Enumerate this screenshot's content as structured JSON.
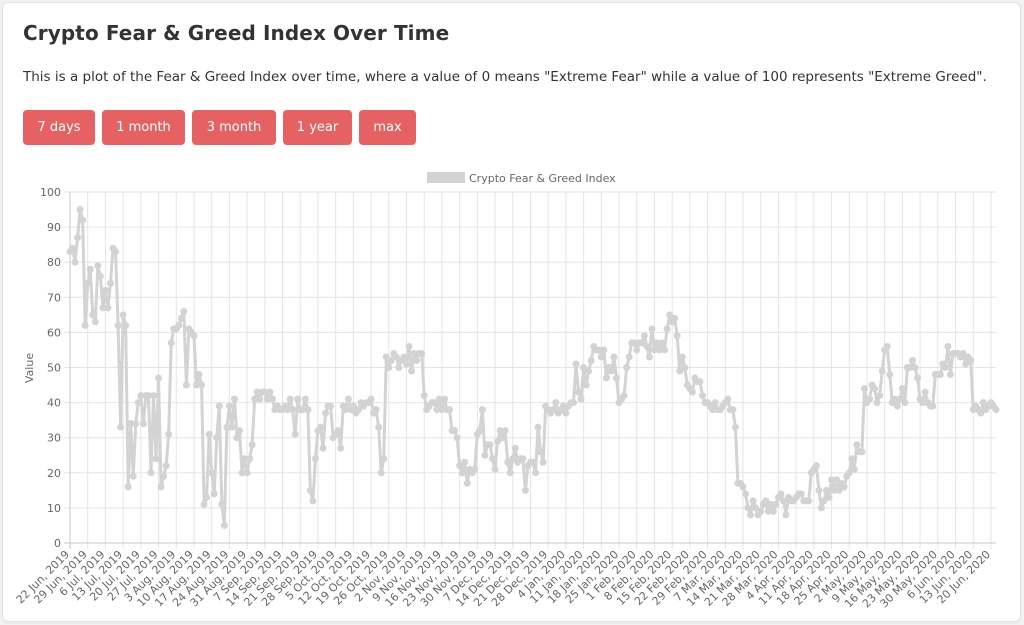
{
  "page": {
    "title": "Crypto Fear & Greed Index Over Time",
    "description": "This is a plot of the Fear & Greed Index over time, where a value of 0 means \"Extreme Fear\" while a value of 100 represents \"Extreme Greed\"."
  },
  "range_buttons": [
    "7 days",
    "1 month",
    "3 month",
    "1 year",
    "max"
  ],
  "colors": {
    "button": "#e66262",
    "line": "#d3d3d3",
    "grid": "#e5e5e5",
    "text": "#666666"
  },
  "chart_data": {
    "type": "line",
    "title": "",
    "ylabel": "Value",
    "xlabel": "",
    "ylim": [
      0,
      100
    ],
    "yticks": [
      0,
      10,
      20,
      30,
      40,
      50,
      60,
      70,
      80,
      90,
      100
    ],
    "grid": true,
    "legend_position": "top",
    "x_tick_labels": [
      "22 Jun, 2019",
      "29 Jun, 2019",
      "6 Jul, 2019",
      "13 Jul, 2019",
      "20 Jul, 2019",
      "27 Jul, 2019",
      "3 Aug, 2019",
      "10 Aug, 2019",
      "17 Aug, 2019",
      "24 Aug, 2019",
      "31 Aug, 2019",
      "7 Sep, 2019",
      "14 Sep, 2019",
      "21 Sep, 2019",
      "28 Sep, 2019",
      "5 Oct, 2019",
      "12 Oct, 2019",
      "19 Oct, 2019",
      "26 Oct, 2019",
      "2 Nov, 2019",
      "9 Nov, 2019",
      "16 Nov, 2019",
      "23 Nov, 2019",
      "30 Nov, 2019",
      "7 Dec, 2019",
      "14 Dec, 2019",
      "21 Dec, 2019",
      "28 Dec, 2019",
      "4 Jan, 2020",
      "11 Jan, 2020",
      "18 Jan, 2020",
      "25 Jan, 2020",
      "1 Feb, 2020",
      "8 Feb, 2020",
      "15 Feb, 2020",
      "22 Feb, 2020",
      "29 Feb, 2020",
      "7 Mar, 2020",
      "14 Mar, 2020",
      "21 Mar, 2020",
      "28 Mar, 2020",
      "4 Apr, 2020",
      "11 Apr, 2020",
      "18 Apr, 2020",
      "25 Apr, 2020",
      "2 May, 2020",
      "9 May, 2020",
      "16 May, 2020",
      "23 May, 2020",
      "30 May, 2020",
      "6 Jun, 2020",
      "13 Jun, 2020",
      "20 Jun, 2020"
    ],
    "series": [
      {
        "name": "Crypto Fear & Greed Index",
        "start_date": "22 Jun, 2019",
        "values": [
          83,
          84,
          80,
          87,
          95,
          92,
          62,
          74,
          78,
          65,
          63,
          79,
          76,
          67,
          72,
          67,
          74,
          84,
          83,
          62,
          33,
          65,
          62,
          16,
          34,
          19,
          34,
          40,
          42,
          34,
          42,
          42,
          20,
          42,
          24,
          47,
          16,
          19,
          22,
          31,
          57,
          61,
          61,
          62,
          64,
          66,
          45,
          61,
          60,
          59,
          45,
          48,
          45,
          11,
          13,
          31,
          20,
          14,
          30,
          39,
          11,
          5,
          33,
          39,
          33,
          41,
          30,
          32,
          20,
          24,
          20,
          24,
          28,
          41,
          43,
          41,
          43,
          43,
          41,
          43,
          41,
          38,
          39,
          38,
          38,
          39,
          38,
          41,
          38,
          31,
          41,
          38,
          38,
          41,
          38,
          15,
          12,
          24,
          32,
          33,
          27,
          37,
          39,
          39,
          30,
          31,
          32,
          27,
          39,
          38,
          41,
          38,
          39,
          37,
          38,
          40,
          39,
          40,
          40,
          41,
          37,
          38,
          33,
          20,
          24,
          53,
          50,
          52,
          54,
          53,
          50,
          52,
          53,
          51,
          56,
          49,
          54,
          52,
          54,
          54,
          42,
          38,
          39,
          40,
          40,
          38,
          41,
          38,
          41,
          38,
          38,
          32,
          32,
          30,
          22,
          20,
          23,
          17,
          21,
          20,
          21,
          31,
          32,
          38,
          25,
          28,
          28,
          24,
          21,
          29,
          32,
          30,
          32,
          23,
          20,
          24,
          27,
          23,
          24,
          24,
          15,
          22,
          23,
          23,
          20,
          33,
          26,
          23,
          39,
          38,
          37,
          38,
          40,
          37,
          38,
          39,
          37,
          39,
          40,
          40,
          51,
          43,
          41,
          50,
          45,
          49,
          52,
          56,
          55,
          55,
          53,
          55,
          47,
          50,
          49,
          53,
          47,
          40,
          41,
          42,
          50,
          53,
          57,
          57,
          55,
          57,
          57,
          59,
          56,
          53,
          61,
          55,
          57,
          55,
          57,
          55,
          61,
          65,
          63,
          64,
          59,
          49,
          53,
          50,
          45,
          44,
          43,
          47,
          46,
          46,
          42,
          40,
          40,
          39,
          38,
          40,
          38,
          38,
          39,
          40,
          41,
          38,
          38,
          33,
          17,
          17,
          16,
          14,
          10,
          8,
          12,
          10,
          8,
          9,
          11,
          12,
          9,
          11,
          9,
          11,
          13,
          14,
          12,
          8,
          13,
          12,
          12,
          13,
          14,
          14,
          12,
          12,
          12,
          20,
          21,
          22,
          15,
          10,
          12,
          15,
          13,
          18,
          15,
          18,
          15,
          17,
          16,
          19,
          20,
          24,
          21,
          28,
          26,
          26,
          44,
          40,
          41,
          45,
          44,
          40,
          42,
          49,
          55,
          56,
          48,
          40,
          41,
          39,
          41,
          44,
          40,
          50,
          50,
          52,
          50,
          47,
          41,
          40,
          43,
          40,
          39,
          39,
          48,
          48,
          48,
          51,
          50,
          56,
          48,
          54,
          54,
          54,
          53,
          54,
          51,
          53,
          52,
          38,
          39,
          38,
          37,
          40,
          38,
          39,
          40,
          39,
          38
        ]
      }
    ]
  }
}
